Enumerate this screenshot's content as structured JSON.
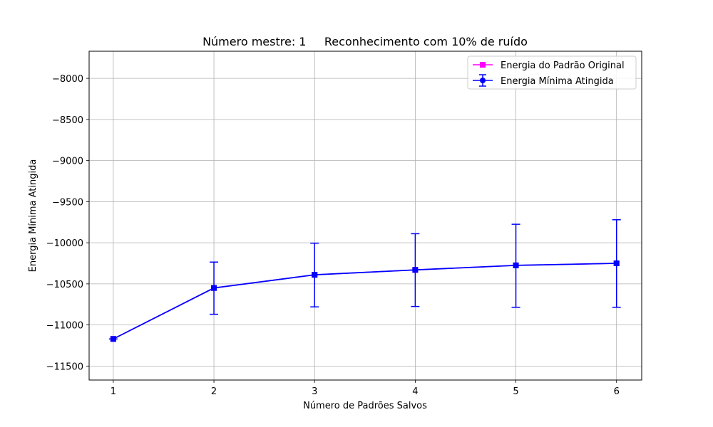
{
  "chart_data": {
    "type": "line",
    "title": "Número mestre: 1     Reconhecimento com 10% de ruído",
    "xlabel": "Número de Padrões Salvos",
    "ylabel": "Energia Mínima Atingida",
    "x": [
      1,
      2,
      3,
      4,
      5,
      6
    ],
    "xticks": [
      1,
      2,
      3,
      4,
      5,
      6
    ],
    "xlim": [
      0.76,
      6.25
    ],
    "ylim": [
      -11670,
      -7670
    ],
    "yticks": [
      -11500,
      -11000,
      -10500,
      -10000,
      -9500,
      -9000,
      -8500,
      -8000
    ],
    "grid": true,
    "legend_position": "top-right",
    "series": [
      {
        "name": "Energia do Padrão Original",
        "color": "#ff00ff",
        "marker": "square",
        "values": [
          -11170,
          -10550,
          -10390,
          -10330,
          -10275,
          -10250
        ]
      },
      {
        "name": "Energia Mínima Atingida",
        "color": "#0000ff",
        "marker": "circle",
        "values": [
          -11170,
          -10550,
          -10390,
          -10330,
          -10275,
          -10250
        ],
        "error_low": [
          0,
          320,
          390,
          445,
          510,
          535
        ],
        "error_high": [
          0,
          315,
          385,
          440,
          500,
          530
        ]
      }
    ]
  }
}
